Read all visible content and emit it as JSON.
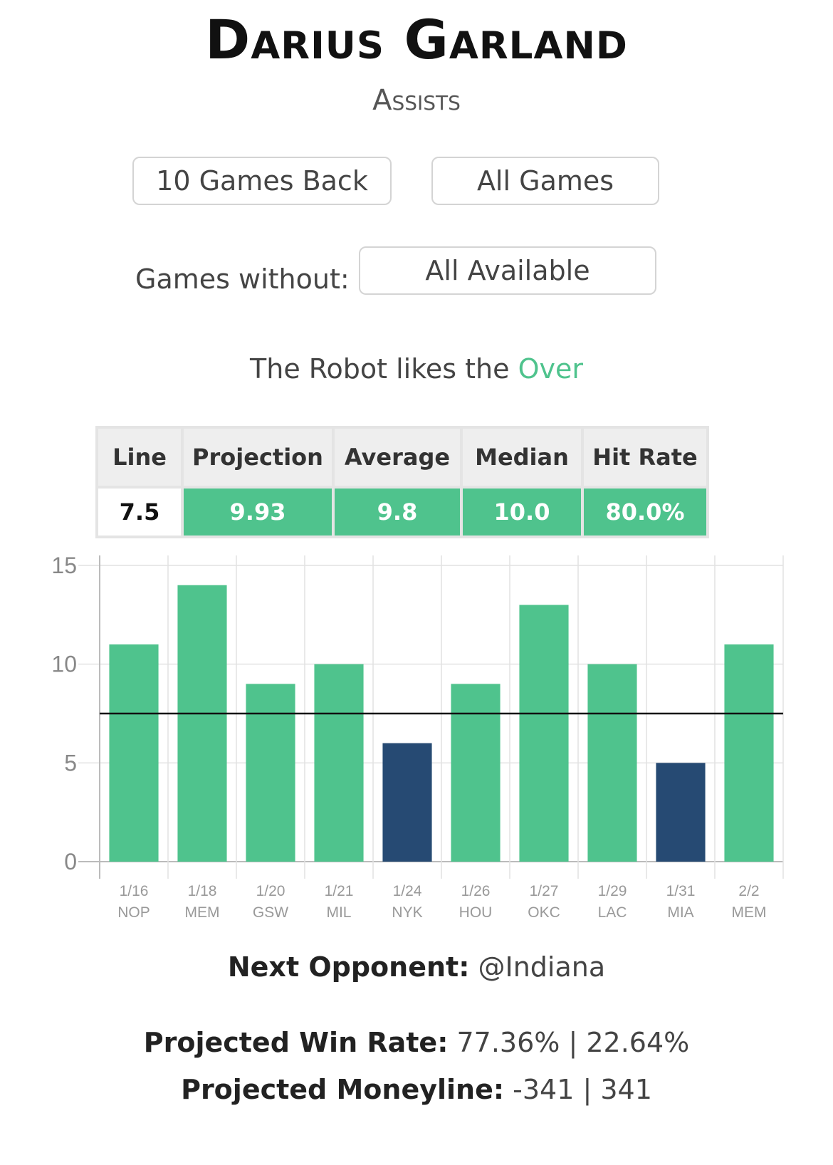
{
  "header": {
    "player_name": "Darius Garland",
    "stat": "Assists"
  },
  "filters": {
    "games_back_label": "10 Games Back",
    "season_label": "All Games",
    "games_without_label": "Games without:",
    "games_without_value": "All Available"
  },
  "verdict": {
    "prefix": "The Robot likes the",
    "pick": "Over",
    "pick_color": "#4fc38d"
  },
  "stats_table": {
    "headers": [
      "Line",
      "Projection",
      "Average",
      "Median",
      "Hit Rate"
    ],
    "values": [
      "7.5",
      "9.93",
      "9.8",
      "10.0",
      "80.0%"
    ]
  },
  "chart_data": {
    "type": "bar",
    "dates": [
      "1/16",
      "1/18",
      "1/20",
      "1/21",
      "1/24",
      "1/26",
      "1/27",
      "1/29",
      "1/31",
      "2/2"
    ],
    "opponents": [
      "NOP",
      "MEM",
      "GSW",
      "MIL",
      "NYK",
      "HOU",
      "OKC",
      "LAC",
      "MIA",
      "MEM"
    ],
    "values": [
      11,
      14,
      9,
      10,
      6,
      9,
      13,
      10,
      5,
      11
    ],
    "line": 7.5,
    "ylim": [
      0,
      15
    ],
    "yticks": [
      0,
      5,
      10,
      15
    ],
    "grid": true,
    "over_color": "#4fc38d",
    "under_color": "#264a73",
    "line_color": "#111111"
  },
  "next_game": {
    "opponent_label": "Next Opponent:",
    "opponent": "@Indiana",
    "win_rate_label": "Projected Win Rate:",
    "win_rate": "77.36% | 22.64%",
    "moneyline_label": "Projected Moneyline:",
    "moneyline": "-341 | 341"
  }
}
